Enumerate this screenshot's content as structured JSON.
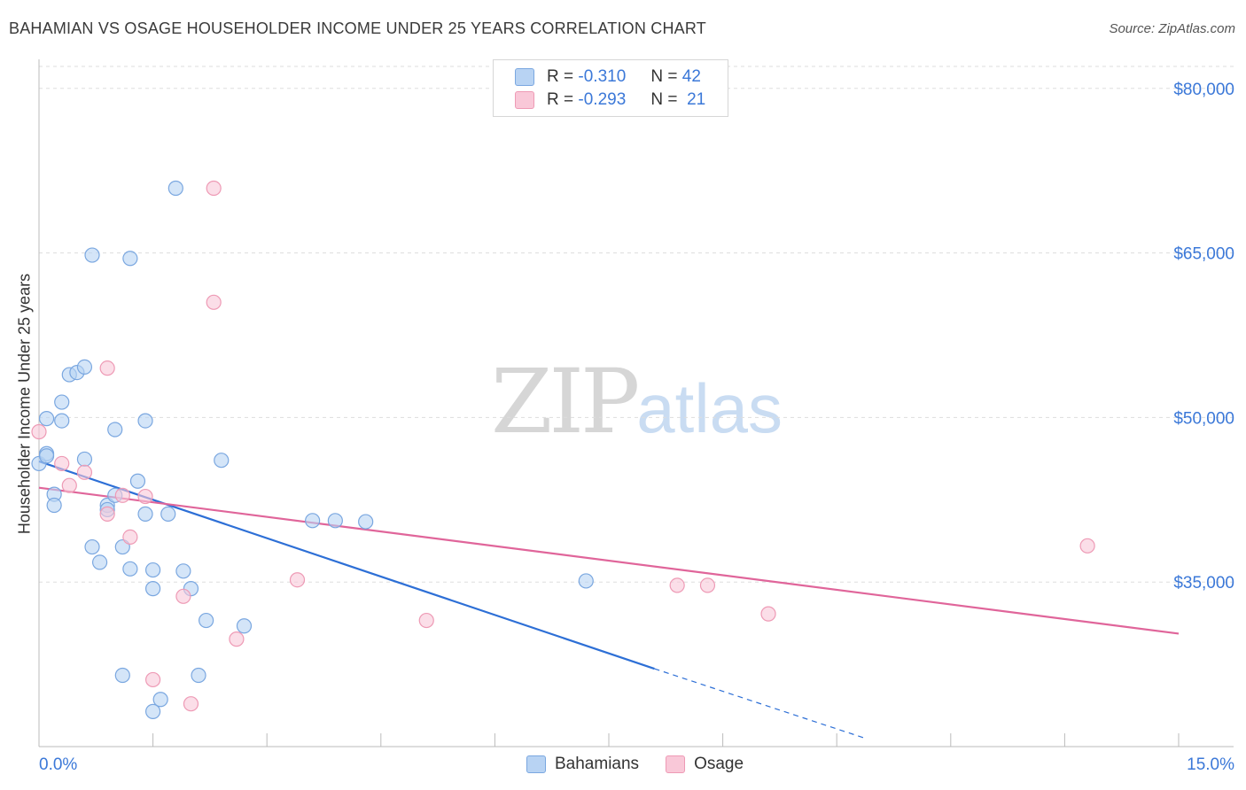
{
  "header": {
    "title": "BAHAMIAN VS OSAGE HOUSEHOLDER INCOME UNDER 25 YEARS CORRELATION CHART",
    "source": "Source: ZipAtlas.com"
  },
  "watermark": {
    "part1": "ZIP",
    "part2": "atlas"
  },
  "legend": {
    "rows": [
      {
        "r_label": "R =",
        "r_value": "-0.310",
        "n_label": "N =",
        "n_value": "42"
      },
      {
        "r_label": "R =",
        "r_value": "-0.293",
        "n_label": "N =",
        "n_value": "21"
      }
    ]
  },
  "bottom_legend": {
    "series1": "Bahamians",
    "series2": "Osage"
  },
  "colors": {
    "blue_fill": "#b8d3f3",
    "blue_stroke": "#7aa7e0",
    "blue_line": "#2d6fd6",
    "pink_fill": "#f9c8d8",
    "pink_stroke": "#ee9ab5",
    "pink_line": "#e0659a",
    "axis_text": "#3b78d8",
    "grid": "#dddddd"
  },
  "chart_data": {
    "type": "scatter",
    "title": "BAHAMIAN VS OSAGE HOUSEHOLDER INCOME UNDER 25 YEARS CORRELATION CHART",
    "xlabel": "",
    "ylabel": "Householder Income Under 25 years",
    "xlim": [
      0,
      15
    ],
    "ylim": [
      20000,
      82000
    ],
    "x_tick_labels": [
      "0.0%",
      "15.0%"
    ],
    "y_ticks": [
      35000,
      50000,
      65000,
      80000
    ],
    "y_tick_labels": [
      "$35,000",
      "$50,000",
      "$65,000",
      "$80,000"
    ],
    "series": [
      {
        "name": "Bahamians",
        "r": -0.31,
        "n": 42,
        "points": [
          [
            0.0,
            45800
          ],
          [
            0.1,
            46700
          ],
          [
            0.1,
            49900
          ],
          [
            0.2,
            43000
          ],
          [
            0.2,
            42000
          ],
          [
            0.3,
            49700
          ],
          [
            0.3,
            51400
          ],
          [
            0.4,
            53900
          ],
          [
            0.5,
            54100
          ],
          [
            0.6,
            54600
          ],
          [
            0.6,
            46200
          ],
          [
            0.7,
            38200
          ],
          [
            0.8,
            36800
          ],
          [
            0.9,
            42000
          ],
          [
            0.9,
            41600
          ],
          [
            1.0,
            48900
          ],
          [
            1.0,
            42900
          ],
          [
            1.1,
            38200
          ],
          [
            1.2,
            36200
          ],
          [
            1.3,
            44200
          ],
          [
            1.4,
            41200
          ],
          [
            1.4,
            49700
          ],
          [
            1.5,
            36100
          ],
          [
            1.5,
            34400
          ],
          [
            1.7,
            41200
          ],
          [
            1.9,
            36000
          ],
          [
            2.0,
            34400
          ],
          [
            2.2,
            31500
          ],
          [
            2.4,
            46100
          ],
          [
            2.7,
            31000
          ],
          [
            3.6,
            40600
          ],
          [
            3.9,
            40600
          ],
          [
            4.3,
            40500
          ],
          [
            7.2,
            35100
          ],
          [
            0.7,
            64800
          ],
          [
            1.2,
            64500
          ],
          [
            1.8,
            70900
          ],
          [
            1.1,
            26500
          ],
          [
            1.5,
            23200
          ],
          [
            1.6,
            24300
          ],
          [
            2.1,
            26500
          ],
          [
            0.1,
            46500
          ]
        ],
        "trend": {
          "x": [
            0,
            8.1
          ],
          "y": [
            46000,
            27100
          ]
        },
        "trend_dashed": {
          "x": [
            8.1,
            10.9
          ],
          "y": [
            27100,
            20700
          ]
        }
      },
      {
        "name": "Osage",
        "r": -0.293,
        "n": 21,
        "points": [
          [
            0.0,
            48700
          ],
          [
            0.3,
            45800
          ],
          [
            0.4,
            43800
          ],
          [
            0.6,
            45000
          ],
          [
            0.9,
            54500
          ],
          [
            0.9,
            41200
          ],
          [
            1.1,
            42900
          ],
          [
            1.2,
            39100
          ],
          [
            1.4,
            42800
          ],
          [
            1.9,
            33700
          ],
          [
            1.5,
            26100
          ],
          [
            2.0,
            23900
          ],
          [
            2.3,
            60500
          ],
          [
            2.3,
            70900
          ],
          [
            2.6,
            29800
          ],
          [
            3.4,
            35200
          ],
          [
            5.1,
            31500
          ],
          [
            8.4,
            34700
          ],
          [
            8.8,
            34700
          ],
          [
            9.6,
            32100
          ],
          [
            13.8,
            38300
          ]
        ],
        "trend": {
          "x": [
            0,
            15
          ],
          "y": [
            43600,
            30300
          ]
        }
      }
    ]
  }
}
